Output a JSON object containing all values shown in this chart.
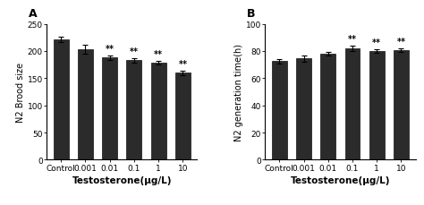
{
  "panel_A": {
    "label": "A",
    "categories": [
      "Control",
      "0.001",
      "0.01",
      "0.1",
      "1",
      "10"
    ],
    "values": [
      221,
      203,
      188,
      183,
      179,
      160
    ],
    "errors": [
      5,
      8,
      4,
      4,
      3,
      4
    ],
    "sig": [
      false,
      false,
      true,
      true,
      true,
      true
    ],
    "ylabel": "N2 Brood size",
    "xlabel": "Testosterone(μg/L)",
    "ylim": [
      0,
      250
    ],
    "yticks": [
      0,
      50,
      100,
      150,
      200,
      250
    ]
  },
  "panel_B": {
    "label": "B",
    "categories": [
      "Control",
      "0.001",
      "0.01",
      "0.1",
      "1",
      "10"
    ],
    "values": [
      72.5,
      74.5,
      78,
      82,
      80,
      80.5
    ],
    "errors": [
      1.5,
      2.5,
      1.5,
      2.0,
      1.5,
      1.5
    ],
    "sig": [
      false,
      false,
      false,
      true,
      true,
      true
    ],
    "ylabel": "N2 generation time(h)",
    "xlabel": "Testosterone(μg/L)",
    "ylim": [
      0,
      100
    ],
    "yticks": [
      0,
      20,
      40,
      60,
      80,
      100
    ]
  },
  "bar_color": "#2b2b2b",
  "bar_edgecolor": "#111111",
  "bar_width": 0.62,
  "errorbar_color": "black",
  "sig_label": "**",
  "bg_color": "#ffffff",
  "font_size_label": 7,
  "font_size_tick": 6.5,
  "font_size_panel": 9,
  "font_size_sig": 7,
  "font_size_xlabel": 7.5
}
